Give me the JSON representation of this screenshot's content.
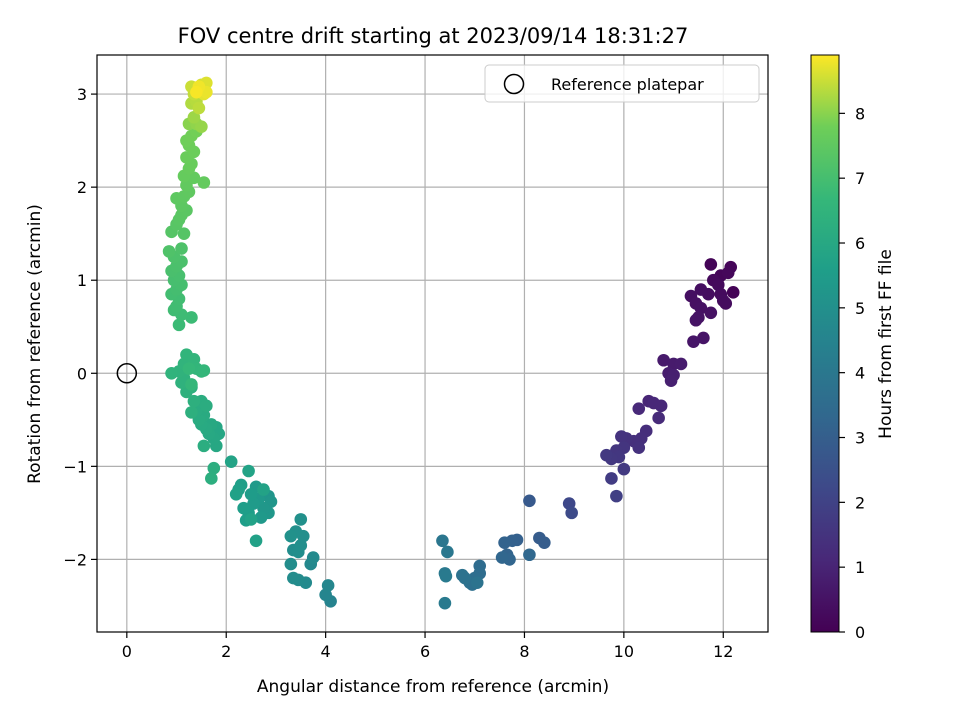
{
  "chart_data": {
    "type": "scatter",
    "title": "FOV centre drift starting at 2023/09/14 18:31:27",
    "xlabel": "Angular distance from reference (arcmin)",
    "ylabel": "Rotation from reference (arcmin)",
    "xlim": [
      -0.6,
      12.9
    ],
    "ylim": [
      -2.78,
      3.42
    ],
    "xticks": [
      0,
      2,
      4,
      6,
      8,
      10,
      12
    ],
    "yticks": [
      -2,
      -1,
      0,
      1,
      2,
      3
    ],
    "grid": true,
    "legend": {
      "position": "top-right",
      "entries": [
        "Reference platepar"
      ]
    },
    "reference_point": {
      "x": 0,
      "y": 0
    },
    "colorbar": {
      "label": "Hours from first FF file",
      "cmap": "viridis",
      "range": [
        0,
        8.9
      ],
      "ticks": [
        0,
        1,
        2,
        3,
        4,
        5,
        6,
        7,
        8
      ]
    },
    "series": [
      {
        "points": [
          {
            "x": 12.2,
            "y": 0.87,
            "c": 0.05
          },
          {
            "x": 11.75,
            "y": 1.17,
            "c": 0.1
          },
          {
            "x": 11.95,
            "y": 1.05,
            "c": 0.12
          },
          {
            "x": 12.15,
            "y": 1.14,
            "c": 0.15
          },
          {
            "x": 12.1,
            "y": 1.08,
            "c": 0.18
          },
          {
            "x": 11.8,
            "y": 1.0,
            "c": 0.22
          },
          {
            "x": 11.9,
            "y": 0.95,
            "c": 0.25
          },
          {
            "x": 11.95,
            "y": 0.85,
            "c": 0.28
          },
          {
            "x": 12.0,
            "y": 0.78,
            "c": 0.3
          },
          {
            "x": 12.05,
            "y": 0.75,
            "c": 0.32
          },
          {
            "x": 11.7,
            "y": 0.85,
            "c": 0.35
          },
          {
            "x": 11.55,
            "y": 0.9,
            "c": 0.38
          },
          {
            "x": 11.35,
            "y": 0.83,
            "c": 0.4
          },
          {
            "x": 11.45,
            "y": 0.75,
            "c": 0.42
          },
          {
            "x": 11.55,
            "y": 0.7,
            "c": 0.45
          },
          {
            "x": 11.75,
            "y": 0.65,
            "c": 0.47
          },
          {
            "x": 11.5,
            "y": 0.6,
            "c": 0.5
          },
          {
            "x": 11.45,
            "y": 0.57,
            "c": 0.52
          },
          {
            "x": 11.6,
            "y": 0.38,
            "c": 0.55
          },
          {
            "x": 11.4,
            "y": 0.34,
            "c": 0.58
          },
          {
            "x": 10.8,
            "y": 0.14,
            "c": 0.7
          },
          {
            "x": 11.0,
            "y": 0.1,
            "c": 0.75
          },
          {
            "x": 11.15,
            "y": 0.1,
            "c": 0.78
          },
          {
            "x": 10.9,
            "y": 0.0,
            "c": 0.8
          },
          {
            "x": 11.0,
            "y": -0.02,
            "c": 0.85
          },
          {
            "x": 10.95,
            "y": -0.08,
            "c": 0.88
          },
          {
            "x": 10.5,
            "y": -0.3,
            "c": 1.05
          },
          {
            "x": 10.6,
            "y": -0.32,
            "c": 1.1
          },
          {
            "x": 10.75,
            "y": -0.35,
            "c": 1.12
          },
          {
            "x": 10.3,
            "y": -0.38,
            "c": 1.15
          },
          {
            "x": 10.7,
            "y": -0.48,
            "c": 1.2
          },
          {
            "x": 10.45,
            "y": -0.62,
            "c": 1.3
          },
          {
            "x": 10.35,
            "y": -0.7,
            "c": 1.35
          },
          {
            "x": 10.2,
            "y": -0.73,
            "c": 1.38
          },
          {
            "x": 10.3,
            "y": -0.8,
            "c": 1.42
          },
          {
            "x": 10.05,
            "y": -0.7,
            "c": 1.45
          },
          {
            "x": 9.95,
            "y": -0.68,
            "c": 1.5
          },
          {
            "x": 10.0,
            "y": -0.8,
            "c": 1.55
          },
          {
            "x": 9.85,
            "y": -0.83,
            "c": 1.58
          },
          {
            "x": 9.9,
            "y": -0.9,
            "c": 1.62
          },
          {
            "x": 9.75,
            "y": -0.92,
            "c": 1.65
          },
          {
            "x": 9.65,
            "y": -0.88,
            "c": 1.68
          },
          {
            "x": 10.0,
            "y": -1.03,
            "c": 1.72
          },
          {
            "x": 9.75,
            "y": -1.13,
            "c": 1.8
          },
          {
            "x": 9.85,
            "y": -1.32,
            "c": 1.9
          },
          {
            "x": 8.9,
            "y": -1.4,
            "c": 2.2
          },
          {
            "x": 8.95,
            "y": -1.5,
            "c": 2.3
          },
          {
            "x": 8.1,
            "y": -1.37,
            "c": 2.8
          },
          {
            "x": 8.3,
            "y": -1.77,
            "c": 2.9
          },
          {
            "x": 8.4,
            "y": -1.82,
            "c": 2.95
          },
          {
            "x": 7.85,
            "y": -1.79,
            "c": 3.05
          },
          {
            "x": 7.75,
            "y": -1.8,
            "c": 3.1
          },
          {
            "x": 7.6,
            "y": -1.82,
            "c": 3.15
          },
          {
            "x": 7.65,
            "y": -1.95,
            "c": 3.2
          },
          {
            "x": 7.7,
            "y": -2.0,
            "c": 3.25
          },
          {
            "x": 7.55,
            "y": -1.98,
            "c": 3.3
          },
          {
            "x": 8.1,
            "y": -1.95,
            "c": 3.35
          },
          {
            "x": 7.1,
            "y": -2.07,
            "c": 3.5
          },
          {
            "x": 7.1,
            "y": -2.15,
            "c": 3.55
          },
          {
            "x": 7.0,
            "y": -2.2,
            "c": 3.6
          },
          {
            "x": 6.95,
            "y": -2.27,
            "c": 3.65
          },
          {
            "x": 6.9,
            "y": -2.25,
            "c": 3.7
          },
          {
            "x": 6.8,
            "y": -2.2,
            "c": 3.75
          },
          {
            "x": 6.75,
            "y": -2.17,
            "c": 3.78
          },
          {
            "x": 7.05,
            "y": -2.25,
            "c": 3.8
          },
          {
            "x": 6.35,
            "y": -1.8,
            "c": 3.95
          },
          {
            "x": 6.45,
            "y": -1.92,
            "c": 4.0
          },
          {
            "x": 6.4,
            "y": -2.15,
            "c": 4.05
          },
          {
            "x": 6.4,
            "y": -2.47,
            "c": 4.1
          },
          {
            "x": 6.42,
            "y": -2.18,
            "c": 4.12
          },
          {
            "x": 4.1,
            "y": -2.45,
            "c": 4.5
          },
          {
            "x": 4.0,
            "y": -2.38,
            "c": 4.55
          },
          {
            "x": 4.05,
            "y": -2.28,
            "c": 4.6
          },
          {
            "x": 3.7,
            "y": -2.05,
            "c": 4.7
          },
          {
            "x": 3.75,
            "y": -1.98,
            "c": 4.75
          },
          {
            "x": 3.6,
            "y": -2.25,
            "c": 4.78
          },
          {
            "x": 3.45,
            "y": -2.22,
            "c": 4.8
          },
          {
            "x": 3.35,
            "y": -2.2,
            "c": 4.85
          },
          {
            "x": 3.3,
            "y": -2.05,
            "c": 4.88
          },
          {
            "x": 3.35,
            "y": -1.9,
            "c": 4.9
          },
          {
            "x": 3.45,
            "y": -1.92,
            "c": 4.92
          },
          {
            "x": 3.5,
            "y": -1.85,
            "c": 4.95
          },
          {
            "x": 3.55,
            "y": -1.75,
            "c": 4.98
          },
          {
            "x": 3.4,
            "y": -1.7,
            "c": 5.0
          },
          {
            "x": 3.5,
            "y": -1.57,
            "c": 5.02
          },
          {
            "x": 3.3,
            "y": -1.75,
            "c": 5.05
          },
          {
            "x": 2.85,
            "y": -1.32,
            "c": 5.2
          },
          {
            "x": 2.9,
            "y": -1.38,
            "c": 5.25
          },
          {
            "x": 2.85,
            "y": -1.5,
            "c": 5.28
          },
          {
            "x": 2.75,
            "y": -1.45,
            "c": 5.3
          },
          {
            "x": 2.7,
            "y": -1.55,
            "c": 5.35
          },
          {
            "x": 2.65,
            "y": -1.35,
            "c": 5.38
          },
          {
            "x": 2.6,
            "y": -1.22,
            "c": 5.4
          },
          {
            "x": 2.55,
            "y": -1.4,
            "c": 5.45
          },
          {
            "x": 2.5,
            "y": -1.3,
            "c": 5.5
          },
          {
            "x": 2.45,
            "y": -1.5,
            "c": 5.52
          },
          {
            "x": 2.4,
            "y": -1.58,
            "c": 5.55
          },
          {
            "x": 2.35,
            "y": -1.45,
            "c": 5.58
          },
          {
            "x": 2.3,
            "y": -1.2,
            "c": 5.6
          },
          {
            "x": 2.25,
            "y": -1.25,
            "c": 5.65
          },
          {
            "x": 2.2,
            "y": -1.3,
            "c": 5.68
          },
          {
            "x": 2.6,
            "y": -1.8,
            "c": 5.7
          },
          {
            "x": 2.5,
            "y": -1.57,
            "c": 5.72
          },
          {
            "x": 2.75,
            "y": -1.25,
            "c": 5.75
          },
          {
            "x": 2.45,
            "y": -1.05,
            "c": 5.78
          },
          {
            "x": 2.1,
            "y": -0.95,
            "c": 5.8
          },
          {
            "x": 1.8,
            "y": -0.58,
            "c": 5.9
          },
          {
            "x": 1.85,
            "y": -0.65,
            "c": 5.92
          },
          {
            "x": 1.8,
            "y": -0.78,
            "c": 5.95
          },
          {
            "x": 1.75,
            "y": -0.7,
            "c": 5.98
          },
          {
            "x": 1.65,
            "y": -0.65,
            "c": 6.0
          },
          {
            "x": 1.7,
            "y": -0.55,
            "c": 6.02
          },
          {
            "x": 1.6,
            "y": -0.6,
            "c": 6.05
          },
          {
            "x": 1.5,
            "y": -0.55,
            "c": 6.08
          },
          {
            "x": 1.55,
            "y": -0.45,
            "c": 6.1
          },
          {
            "x": 1.45,
            "y": -0.5,
            "c": 6.12
          },
          {
            "x": 1.4,
            "y": -0.4,
            "c": 6.15
          },
          {
            "x": 1.5,
            "y": -0.3,
            "c": 6.18
          },
          {
            "x": 1.6,
            "y": -0.35,
            "c": 6.2
          },
          {
            "x": 1.55,
            "y": -0.78,
            "c": 6.22
          },
          {
            "x": 1.75,
            "y": -1.02,
            "c": 6.25
          },
          {
            "x": 1.7,
            "y": -1.13,
            "c": 6.28
          },
          {
            "x": 1.3,
            "y": -0.42,
            "c": 6.3
          },
          {
            "x": 1.35,
            "y": -0.3,
            "c": 6.32
          },
          {
            "x": 1.3,
            "y": -0.15,
            "c": 6.35
          },
          {
            "x": 1.2,
            "y": -0.2,
            "c": 6.38
          },
          {
            "x": 1.1,
            "y": -0.1,
            "c": 6.4
          },
          {
            "x": 1.15,
            "y": -0.05,
            "c": 6.42
          },
          {
            "x": 1.05,
            "y": 0.02,
            "c": 6.45
          },
          {
            "x": 0.9,
            "y": 0.0,
            "c": 6.48
          },
          {
            "x": 1.15,
            "y": 0.1,
            "c": 6.5
          },
          {
            "x": 1.2,
            "y": 0.2,
            "c": 6.52
          },
          {
            "x": 1.35,
            "y": 0.15,
            "c": 6.55
          },
          {
            "x": 1.4,
            "y": 0.05,
            "c": 6.58
          },
          {
            "x": 1.5,
            "y": 0.02,
            "c": 6.6
          },
          {
            "x": 1.55,
            "y": 0.03,
            "c": 6.62
          },
          {
            "x": 1.3,
            "y": -0.12,
            "c": 6.65
          },
          {
            "x": 1.25,
            "y": 0.05,
            "c": 6.68
          },
          {
            "x": 1.05,
            "y": 0.52,
            "c": 6.8
          },
          {
            "x": 1.3,
            "y": 0.6,
            "c": 6.82
          },
          {
            "x": 1.1,
            "y": 0.63,
            "c": 6.85
          },
          {
            "x": 0.95,
            "y": 0.68,
            "c": 6.88
          },
          {
            "x": 1.0,
            "y": 0.72,
            "c": 6.9
          },
          {
            "x": 1.05,
            "y": 0.8,
            "c": 6.92
          },
          {
            "x": 0.9,
            "y": 0.85,
            "c": 6.95
          },
          {
            "x": 1.0,
            "y": 0.9,
            "c": 6.98
          },
          {
            "x": 1.1,
            "y": 0.95,
            "c": 7.0
          },
          {
            "x": 0.95,
            "y": 1.0,
            "c": 7.02
          },
          {
            "x": 1.05,
            "y": 1.05,
            "c": 7.05
          },
          {
            "x": 0.9,
            "y": 1.1,
            "c": 7.08
          },
          {
            "x": 1.0,
            "y": 1.15,
            "c": 7.1
          },
          {
            "x": 1.1,
            "y": 1.2,
            "c": 7.12
          },
          {
            "x": 0.95,
            "y": 1.25,
            "c": 7.15
          },
          {
            "x": 1.1,
            "y": 1.34,
            "c": 7.18
          },
          {
            "x": 0.85,
            "y": 1.31,
            "c": 7.2
          },
          {
            "x": 1.15,
            "y": 1.5,
            "c": 7.3
          },
          {
            "x": 0.9,
            "y": 1.52,
            "c": 7.32
          },
          {
            "x": 1.0,
            "y": 1.6,
            "c": 7.35
          },
          {
            "x": 1.05,
            "y": 1.65,
            "c": 7.38
          },
          {
            "x": 1.1,
            "y": 1.7,
            "c": 7.4
          },
          {
            "x": 1.2,
            "y": 1.75,
            "c": 7.42
          },
          {
            "x": 1.1,
            "y": 1.8,
            "c": 7.45
          },
          {
            "x": 1.0,
            "y": 1.88,
            "c": 7.48
          },
          {
            "x": 1.15,
            "y": 1.9,
            "c": 7.5
          },
          {
            "x": 1.25,
            "y": 1.95,
            "c": 7.52
          },
          {
            "x": 1.2,
            "y": 2.02,
            "c": 7.55
          },
          {
            "x": 1.35,
            "y": 2.1,
            "c": 7.58
          },
          {
            "x": 1.55,
            "y": 2.05,
            "c": 7.6
          },
          {
            "x": 1.15,
            "y": 2.12,
            "c": 7.62
          },
          {
            "x": 1.25,
            "y": 2.2,
            "c": 7.65
          },
          {
            "x": 1.3,
            "y": 2.25,
            "c": 7.68
          },
          {
            "x": 1.2,
            "y": 2.32,
            "c": 7.7
          },
          {
            "x": 1.35,
            "y": 2.38,
            "c": 7.72
          },
          {
            "x": 1.25,
            "y": 2.45,
            "c": 7.75
          },
          {
            "x": 1.2,
            "y": 2.5,
            "c": 7.78
          },
          {
            "x": 1.3,
            "y": 2.55,
            "c": 7.8
          },
          {
            "x": 1.4,
            "y": 2.6,
            "c": 7.82
          },
          {
            "x": 1.25,
            "y": 2.68,
            "c": 8.0
          },
          {
            "x": 1.4,
            "y": 2.68,
            "c": 8.05
          },
          {
            "x": 1.5,
            "y": 2.65,
            "c": 8.1
          },
          {
            "x": 1.35,
            "y": 2.75,
            "c": 8.15
          },
          {
            "x": 1.3,
            "y": 2.9,
            "c": 8.3
          },
          {
            "x": 1.4,
            "y": 2.92,
            "c": 8.35
          },
          {
            "x": 1.45,
            "y": 2.85,
            "c": 8.4
          },
          {
            "x": 1.35,
            "y": 3.0,
            "c": 8.45
          },
          {
            "x": 1.3,
            "y": 3.08,
            "c": 8.5
          },
          {
            "x": 1.45,
            "y": 3.05,
            "c": 8.55
          },
          {
            "x": 1.5,
            "y": 3.1,
            "c": 8.6
          },
          {
            "x": 1.6,
            "y": 3.12,
            "c": 8.65
          },
          {
            "x": 1.55,
            "y": 3.0,
            "c": 8.7
          },
          {
            "x": 1.6,
            "y": 3.02,
            "c": 8.75
          },
          {
            "x": 1.45,
            "y": 3.08,
            "c": 8.8
          },
          {
            "x": 1.4,
            "y": 3.02,
            "c": 8.85
          }
        ]
      }
    ]
  }
}
